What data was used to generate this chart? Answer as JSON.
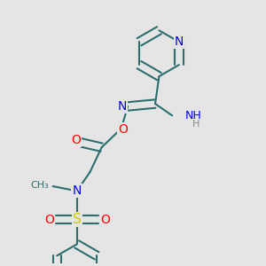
{
  "bg": "#e5e5e5",
  "bond_color": "#2d6e6e",
  "bw": 1.5,
  "dbo": 0.08,
  "atom_colors": {
    "N": "#0000ee",
    "O": "#ff0000",
    "S": "#cccc00",
    "C": "#2d6e6e",
    "H": "#888888"
  },
  "fs": 9,
  "fw": 3.0,
  "fh": 3.0,
  "dpi": 100
}
